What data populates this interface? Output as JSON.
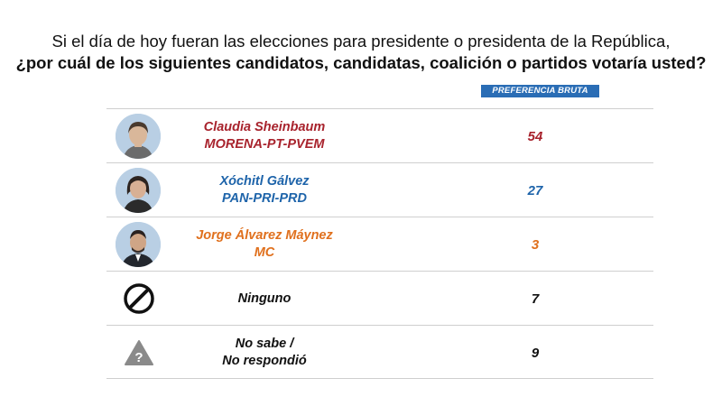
{
  "title": {
    "line1": "Si el día de hoy fueran las elecciones para presidente o presidenta de la República,",
    "line2": "¿por cuál de los siguientes candidatos, candidatas, coalición o partidos votaría usted?"
  },
  "chart_data": {
    "type": "table",
    "column_header": "PREFERENCIA BRUTA",
    "rows": [
      {
        "name": "Claudia Sheinbaum",
        "party": "MORENA-PT-PVEM",
        "value": 54,
        "color": "#a8232d",
        "icon": "portrait"
      },
      {
        "name": "Xóchitl Gálvez",
        "party": "PAN-PRI-PRD",
        "value": 27,
        "color": "#1e64aa",
        "icon": "portrait"
      },
      {
        "name": "Jorge Álvarez Máynez",
        "party": "MC",
        "value": 3,
        "color": "#e0701d",
        "icon": "portrait"
      },
      {
        "name": "Ninguno",
        "party": "",
        "value": 7,
        "color": "#111111",
        "icon": "prohibited-icon"
      },
      {
        "name": "No sabe /",
        "party": "No respondió",
        "value": 9,
        "color": "#111111",
        "icon": "question-warning-icon"
      }
    ]
  }
}
